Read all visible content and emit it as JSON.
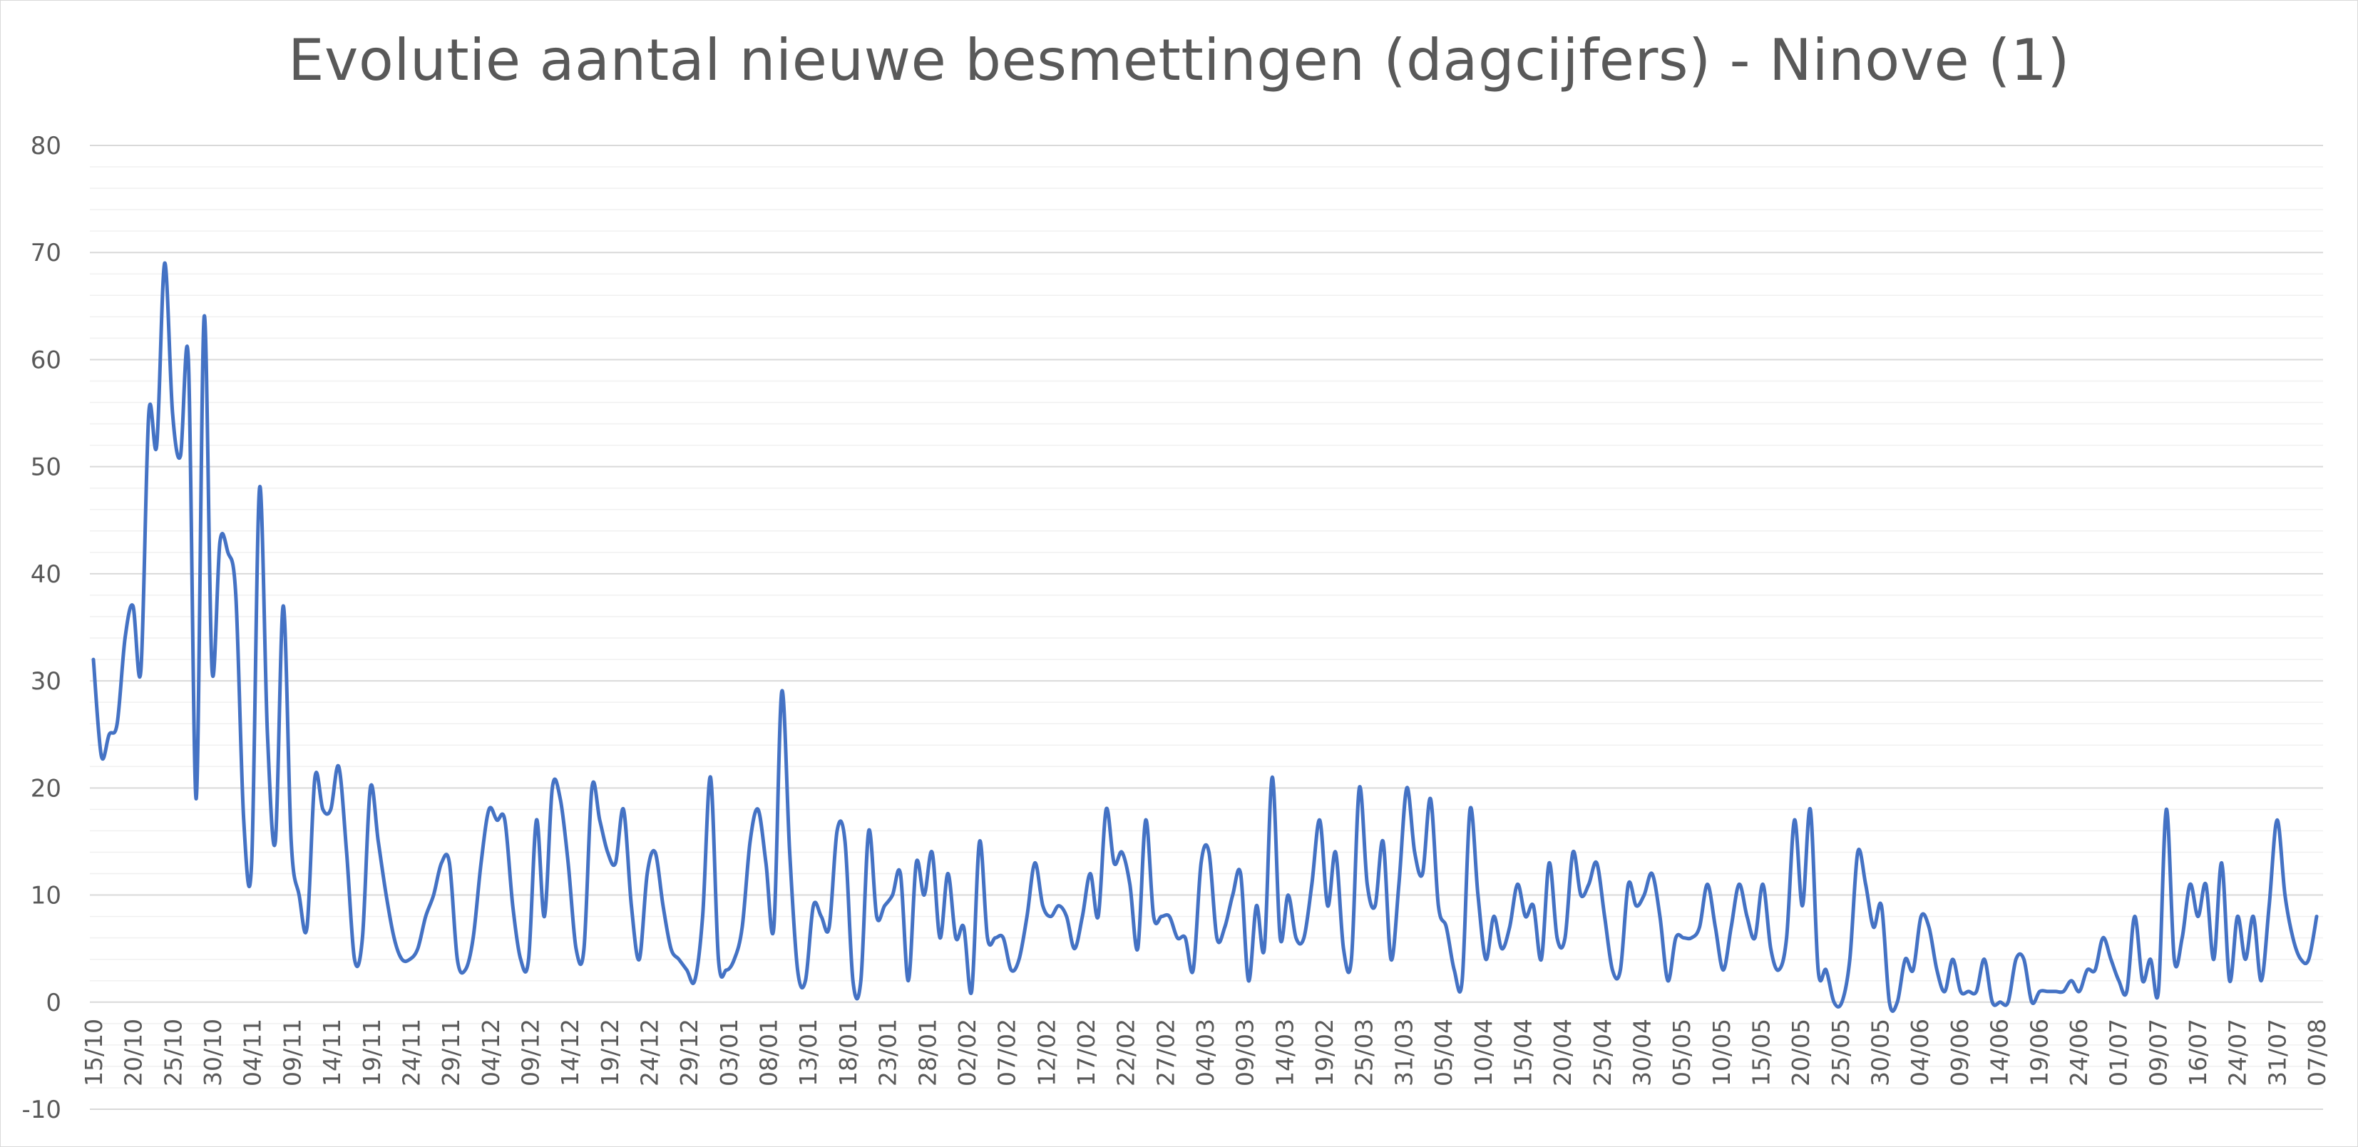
{
  "chart_data": {
    "type": "line",
    "title": "Evolutie aantal nieuwe besmettingen (dagcijfers) - Ninove (1)",
    "xlabel": "",
    "ylabel": "",
    "ylim": [
      -10,
      80
    ],
    "y_ticks": [
      -10,
      0,
      10,
      20,
      30,
      40,
      50,
      60,
      70,
      80
    ],
    "grid": "major and minor horizontal gridlines",
    "legend": "none",
    "line_color": "#4472c4",
    "x_tick_labels": [
      "15/10",
      "20/10",
      "25/10",
      "30/10",
      "04/11",
      "09/11",
      "14/11",
      "19/11",
      "24/11",
      "29/11",
      "04/12",
      "09/12",
      "14/12",
      "19/12",
      "24/12",
      "29/12",
      "03/01",
      "08/01",
      "13/01",
      "18/01",
      "23/01",
      "28/01",
      "02/02",
      "07/02",
      "12/02",
      "17/02",
      "22/02",
      "27/02",
      "04/03",
      "09/03",
      "14/03",
      "19/02",
      "25/03",
      "31/03",
      "05/04",
      "10/04",
      "15/04",
      "20/04",
      "25/04",
      "30/04",
      "05/05",
      "10/05",
      "15/05",
      "20/05",
      "25/05",
      "30/05",
      "04/06",
      "09/06",
      "14/06",
      "19/06",
      "24/06",
      "01/07",
      "09/07",
      "16/07",
      "24/07",
      "31/07",
      "07/08"
    ],
    "series": [
      {
        "values": [
          32,
          23,
          25,
          26,
          34,
          37,
          31,
          55,
          52,
          69,
          55,
          51,
          60,
          19,
          64,
          31,
          43,
          42,
          38,
          17,
          13,
          48,
          25,
          15,
          37,
          15,
          10,
          7,
          21,
          18,
          18,
          22,
          14,
          4,
          6,
          20,
          15,
          10,
          6,
          4,
          4,
          5,
          8,
          10,
          13,
          13,
          4,
          3,
          6,
          13,
          18,
          17,
          17,
          9,
          4,
          4,
          17,
          8,
          20,
          19,
          13,
          5,
          5,
          20,
          17,
          14,
          13,
          18,
          9,
          4,
          12,
          14,
          9,
          5,
          4,
          3,
          2,
          8,
          21,
          4,
          3,
          4,
          7,
          15,
          18,
          13,
          7,
          29,
          14,
          3,
          2,
          9,
          8,
          7,
          16,
          15,
          2,
          2,
          16,
          8,
          9,
          10,
          12,
          2,
          13,
          10,
          14,
          6,
          12,
          6,
          7,
          1,
          15,
          6,
          6,
          6,
          3,
          4,
          8,
          13,
          9,
          8,
          9,
          8,
          5,
          8,
          12,
          8,
          18,
          13,
          14,
          11,
          5,
          17,
          8,
          8,
          8,
          6,
          6,
          3,
          13,
          14,
          6,
          7,
          10,
          12,
          2,
          9,
          5,
          21,
          6,
          10,
          6,
          6,
          11,
          17,
          9,
          14,
          5,
          4,
          20,
          11,
          9,
          15,
          4,
          11,
          20,
          14,
          12,
          19,
          9,
          7,
          3,
          2,
          18,
          10,
          4,
          8,
          5,
          7,
          11,
          8,
          9,
          4,
          13,
          6,
          6,
          14,
          10,
          11,
          13,
          8,
          3,
          3,
          11,
          9,
          10,
          12,
          8,
          2,
          6,
          6,
          6,
          7,
          11,
          7,
          3,
          7,
          11,
          8,
          6,
          11,
          5,
          3,
          6,
          17,
          9,
          18,
          3,
          3,
          0,
          0,
          4,
          14,
          11,
          7,
          9,
          0,
          0,
          4,
          3,
          8,
          7,
          3,
          1,
          4,
          1,
          1,
          1,
          4,
          0,
          0,
          0,
          4,
          4,
          0,
          1,
          1,
          1,
          1,
          2,
          1,
          3,
          3,
          6,
          4,
          2,
          1,
          8,
          2,
          4,
          1,
          18,
          4,
          6,
          11,
          8,
          11,
          4,
          13,
          2,
          8,
          4,
          8,
          2,
          9,
          17,
          10,
          6,
          4,
          4,
          8
        ]
      }
    ]
  }
}
